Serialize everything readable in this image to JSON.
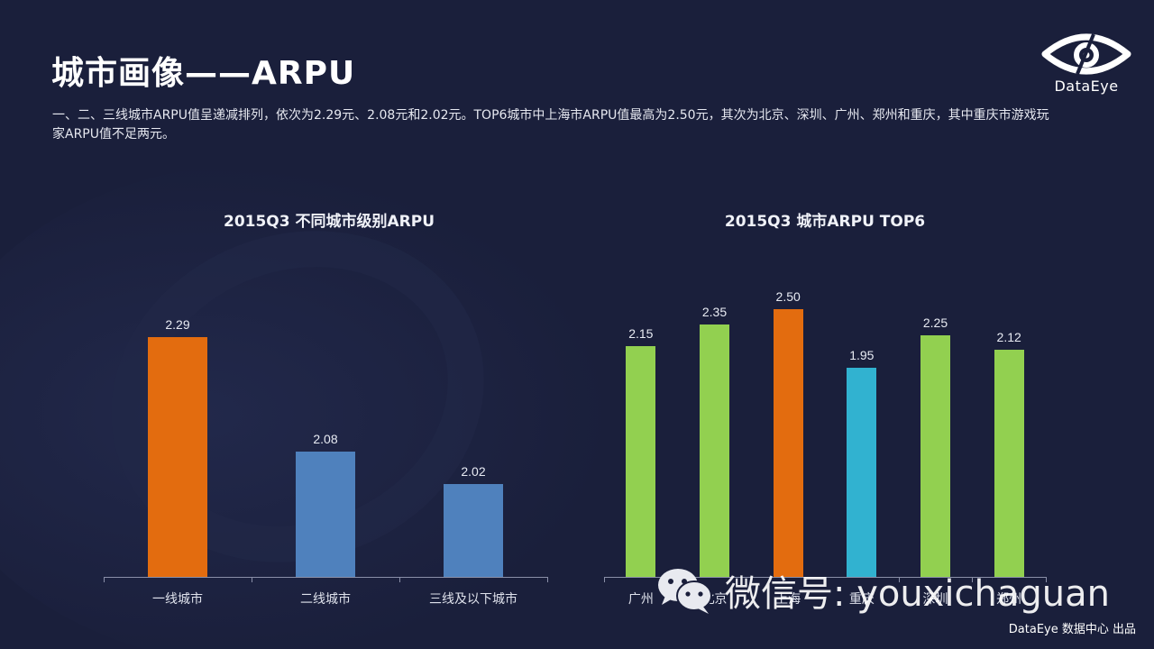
{
  "header": {
    "title": "城市画像——ARPU",
    "description": "一、二、三线城市ARPU值呈递减排列，依次为2.29元、2.08元和2.02元。TOP6城市中上海市ARPU值最高为2.50元，其次为北京、深圳、广州、郑州和重庆，其中重庆市游戏玩家ARPU值不足两元。"
  },
  "logo": {
    "icon": "eye-icon",
    "text": "DataEye"
  },
  "colors": {
    "background": "#1a1f3b",
    "highlight_orange": "#e36c0f",
    "tier_blue": "#4f81bd",
    "city_green": "#92d050",
    "city_cyan": "#31b2d0",
    "axis": "#8a8fa8"
  },
  "chart_data": [
    {
      "type": "bar",
      "title": "2015Q3  不同城市级别ARPU",
      "categories": [
        "一线城市",
        "二线城市",
        "三线及以下城市"
      ],
      "values": [
        2.29,
        2.08,
        2.02
      ],
      "labels": [
        "2.29",
        "2.08",
        "2.02"
      ],
      "colors": [
        "#e36c0f",
        "#4f81bd",
        "#4f81bd"
      ],
      "xlabel": "",
      "ylabel": "",
      "ylim": [
        1.85,
        2.35
      ],
      "grid": false,
      "legend": "none"
    },
    {
      "type": "bar",
      "title": "2015Q3  城市ARPU TOP6",
      "categories": [
        "广州",
        "北京",
        "上海",
        "重庆",
        "深圳",
        "郑州"
      ],
      "values": [
        2.15,
        2.35,
        2.5,
        1.95,
        2.25,
        2.12
      ],
      "labels": [
        "2.15",
        "2.35",
        "2.50",
        "1.95",
        "2.25",
        "2.12"
      ],
      "colors": [
        "#92d050",
        "#92d050",
        "#e36c0f",
        "#31b2d0",
        "#92d050",
        "#92d050"
      ],
      "xlabel": "",
      "ylabel": "",
      "ylim": [
        0,
        2.6
      ],
      "grid": false,
      "legend": "none"
    }
  ],
  "watermark": {
    "icon": "wechat-icon",
    "text": "微信号: youxichaguan"
  },
  "footer": {
    "credit": "DataEye 数据中心 出品"
  }
}
